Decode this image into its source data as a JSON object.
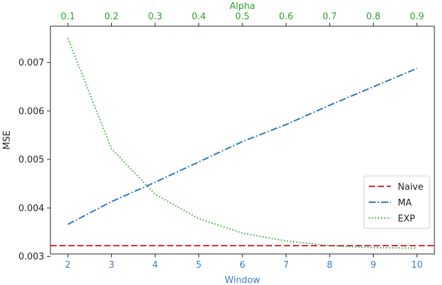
{
  "chart_data": {
    "type": "line",
    "xlabel": "Window",
    "x2label": "Alpha",
    "ylabel": "MSE",
    "x_ticks": [
      2,
      3,
      4,
      5,
      6,
      7,
      8,
      9,
      10
    ],
    "x2_ticks": [
      "0.1",
      "0.2",
      "0.3",
      "0.4",
      "0.5",
      "0.6",
      "0.7",
      "0.8",
      "0.9"
    ],
    "y_ticks": [
      "0.003",
      "0.004",
      "0.005",
      "0.006",
      "0.007"
    ],
    "xlim": [
      1.6,
      10.4
    ],
    "x2lim": [
      0.06,
      0.94
    ],
    "ylim": [
      0.00305,
      0.00775
    ],
    "legend": {
      "placement": "lower-right",
      "entries": [
        "Naive",
        "MA",
        "EXP"
      ]
    },
    "colors": {
      "naive": "#e8262b",
      "ma": "#2b78c0",
      "exp": "#2ea02e"
    },
    "series": [
      {
        "name": "Naive",
        "axis": "x",
        "style": "dashed",
        "x": [
          1.6,
          10.4
        ],
        "y": [
          0.00322,
          0.00322
        ]
      },
      {
        "name": "MA",
        "axis": "x",
        "style": "dashdot",
        "x": [
          2,
          3,
          4,
          5,
          6,
          7,
          8,
          9,
          10
        ],
        "y": [
          0.00366,
          0.00413,
          0.00453,
          0.00495,
          0.00537,
          0.00572,
          0.00612,
          0.0065,
          0.00688
        ]
      },
      {
        "name": "EXP",
        "axis": "x2",
        "style": "dotted",
        "x": [
          0.1,
          0.2,
          0.3,
          0.4,
          0.5,
          0.6,
          0.7,
          0.8,
          0.9
        ],
        "y": [
          0.0075,
          0.00522,
          0.00428,
          0.00378,
          0.00348,
          0.00332,
          0.00322,
          0.00318,
          0.00317
        ]
      }
    ]
  }
}
